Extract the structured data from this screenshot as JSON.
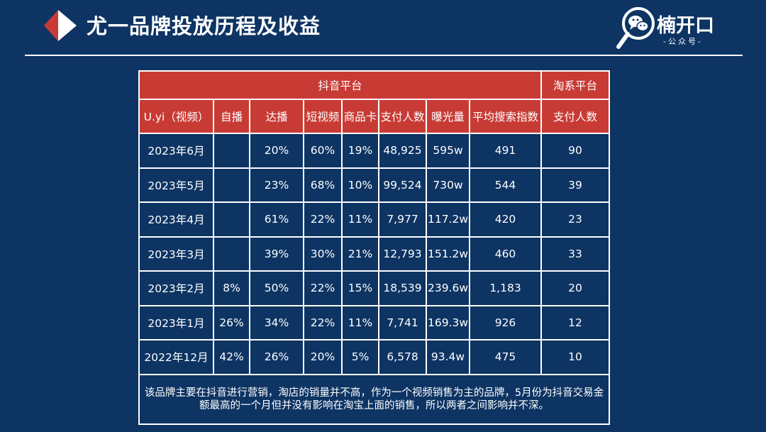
{
  "header": {
    "title": "尤一品牌投放历程及收益",
    "brand_name": "楠开口",
    "brand_sub": "-公众号-",
    "accent_red": "#c83b35",
    "background": "#0d3463",
    "logo_icon": "red-white-flag-icon",
    "brand_icon": "magnifier-wechat-icon"
  },
  "table": {
    "group_headers": {
      "douyin": "抖音平台",
      "taobao": "淘系平台"
    },
    "columns": [
      "U.yi（视频）",
      "自播",
      "达播",
      "短视频",
      "商品卡",
      "支付人数",
      "曝光量",
      "平均搜索指数",
      "支付人数"
    ],
    "rows": [
      [
        "2023年6月",
        "",
        "20%",
        "60%",
        "19%",
        "48,925",
        "595w",
        "491",
        "90"
      ],
      [
        "2023年5月",
        "",
        "23%",
        "68%",
        "10%",
        "99,524",
        "730w",
        "544",
        "39"
      ],
      [
        "2023年4月",
        "",
        "61%",
        "22%",
        "11%",
        "7,977",
        "117.2w",
        "420",
        "23"
      ],
      [
        "2023年3月",
        "",
        "39%",
        "30%",
        "21%",
        "12,793",
        "151.2w",
        "460",
        "33"
      ],
      [
        "2023年2月",
        "8%",
        "50%",
        "22%",
        "15%",
        "18,539",
        "239.6w",
        "1,183",
        "20"
      ],
      [
        "2023年1月",
        "26%",
        "34%",
        "22%",
        "11%",
        "7,741",
        "169.3w",
        "926",
        "12"
      ],
      [
        "2022年12月",
        "42%",
        "26%",
        "20%",
        "5%",
        "6,578",
        "93.4w",
        "475",
        "10"
      ]
    ],
    "note": "该品牌主要在抖音进行营销，淘店的销量并不高，作为一个视频销售为主的品牌，5月份为抖音交易金额最高的一个月但并没有影响在淘宝上面的销售，所以两者之间影响并不深。"
  }
}
